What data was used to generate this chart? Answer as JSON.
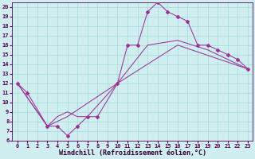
{
  "xlabel": "Windchill (Refroidissement éolien,°C)",
  "bg_color": "#d0eef0",
  "line_color": "#993399",
  "grid_color": "#aadddd",
  "xlim": [
    -0.5,
    23.5
  ],
  "ylim": [
    6,
    20.5
  ],
  "xticks": [
    0,
    1,
    2,
    3,
    4,
    5,
    6,
    7,
    8,
    9,
    10,
    11,
    12,
    13,
    14,
    15,
    16,
    17,
    18,
    19,
    20,
    21,
    22,
    23
  ],
  "yticks": [
    6,
    7,
    8,
    9,
    10,
    11,
    12,
    13,
    14,
    15,
    16,
    17,
    18,
    19,
    20
  ],
  "line1_x": [
    0,
    1,
    3,
    4,
    5,
    6,
    7,
    8,
    10,
    11,
    12,
    13,
    14,
    15,
    16,
    17,
    18,
    19,
    20,
    21,
    22,
    23
  ],
  "line1_y": [
    12,
    11,
    7.5,
    7.5,
    6.5,
    7.5,
    8.5,
    8.5,
    12,
    16,
    16,
    19.5,
    20.5,
    19.5,
    19,
    18.5,
    16,
    16,
    15.5,
    15,
    14.5,
    13.5
  ],
  "line2_x": [
    0,
    3,
    4,
    5,
    6,
    7,
    10,
    13,
    16,
    19,
    23
  ],
  "line2_y": [
    12,
    7.5,
    8.5,
    9,
    8.5,
    8.5,
    12,
    16,
    16.5,
    15.5,
    13.5
  ],
  "line3_x": [
    0,
    3,
    5,
    10,
    16,
    23
  ],
  "line3_y": [
    12,
    7.5,
    8.5,
    12,
    16,
    13.5
  ],
  "font_size": 6,
  "tick_font_size": 5,
  "marker": "D",
  "marker_size": 2,
  "linewidth": 0.75
}
